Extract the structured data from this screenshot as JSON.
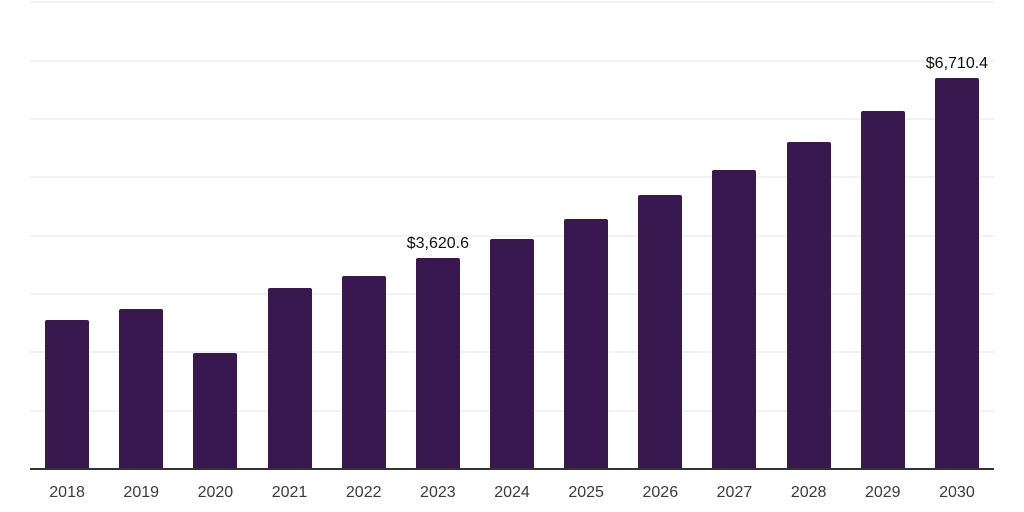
{
  "chart_data": {
    "type": "bar",
    "title": "",
    "xlabel": "",
    "ylabel": "",
    "categories": [
      "2018",
      "2019",
      "2020",
      "2021",
      "2022",
      "2023",
      "2024",
      "2025",
      "2026",
      "2027",
      "2028",
      "2029",
      "2030"
    ],
    "values": [
      2550,
      2740,
      1985,
      3100,
      3300,
      3620.6,
      3940,
      4280,
      4690,
      5120,
      5600,
      6130,
      6710.4
    ],
    "values_note": "only 2023 and 2030 are labeled on the chart; other values estimated from bar heights",
    "data_labels": {
      "2023": "$3,620.6",
      "2030": "$6,710.4"
    },
    "ylim": [
      0,
      8000
    ],
    "grid_step": 1000,
    "grid": "horizontal-only",
    "legend_position": "none",
    "y_axis_tick_labels": "none",
    "colors": {
      "bar": "#38184f",
      "axis_line": "#333333",
      "gridline": "#f2f2f2",
      "tick_label": "#3a3a3a",
      "data_label": "#0f0f0f",
      "background": "#ffffff"
    }
  }
}
